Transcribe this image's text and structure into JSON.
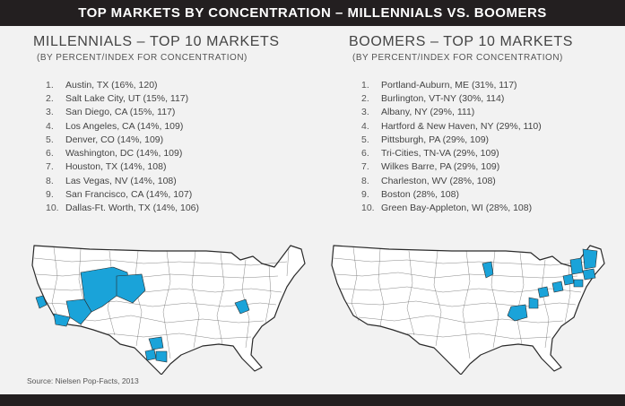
{
  "header": {
    "title": "TOP MARKETS BY CONCENTRATION – MILLENNIALS VS. BOOMERS"
  },
  "millennials": {
    "title": "MILLENNIALS – TOP 10 MARKETS",
    "subtitle": "(BY PERCENT/INDEX FOR CONCENTRATION)",
    "items": [
      {
        "num": "1.",
        "text": "Austin, TX (16%, 120)"
      },
      {
        "num": "2.",
        "text": "Salt Lake City, UT (15%, 117)"
      },
      {
        "num": "3.",
        "text": "San Diego, CA (15%, 117)"
      },
      {
        "num": "4.",
        "text": "Los Angeles, CA (14%, 109)"
      },
      {
        "num": "5.",
        "text": "Denver, CO (14%, 109)"
      },
      {
        "num": "6.",
        "text": "Washington, DC (14%, 109)"
      },
      {
        "num": "7.",
        "text": "Houston, TX (14%, 108)"
      },
      {
        "num": "8.",
        "text": "Las Vegas, NV (14%, 108)"
      },
      {
        "num": "9.",
        "text": "San Francisco, CA (14%, 107)"
      },
      {
        "num": "10.",
        "text": "Dallas-Ft. Worth, TX (14%, 106)"
      }
    ]
  },
  "boomers": {
    "title": "BOOMERS – TOP 10 MARKETS",
    "subtitle": "(BY PERCENT/INDEX FOR CONCENTRATION)",
    "items": [
      {
        "num": "1.",
        "text": "Portland-Auburn, ME (31%, 117)"
      },
      {
        "num": "2.",
        "text": "Burlington, VT-NY (30%, 114)"
      },
      {
        "num": "3.",
        "text": "Albany, NY (29%, 111)"
      },
      {
        "num": "4.",
        "text": "Hartford & New Haven, NY (29%, 110)"
      },
      {
        "num": "5.",
        "text": "Pittsburgh, PA (29%, 109)"
      },
      {
        "num": "6.",
        "text": "Tri-Cities, TN-VA (29%, 109)"
      },
      {
        "num": "7.",
        "text": "Wilkes Barre, PA (29%, 109)"
      },
      {
        "num": "8.",
        "text": "Charleston, WV (28%, 108)"
      },
      {
        "num": "9.",
        "text": "Boston (28%, 108)"
      },
      {
        "num": "10.",
        "text": "Green Bay-Appleton, WI (28%, 108)"
      }
    ]
  },
  "maps": {
    "highlight_color": "#1aa3d9",
    "border_color": "#2a2a2a",
    "fill_color": "#ffffff"
  },
  "source": "Source: Nielsen Pop-Facts, 2013"
}
